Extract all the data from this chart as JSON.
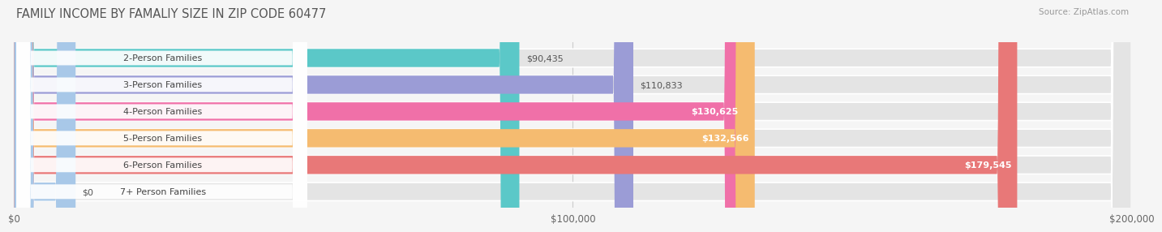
{
  "title": "FAMILY INCOME BY FAMALIY SIZE IN ZIP CODE 60477",
  "source": "Source: ZipAtlas.com",
  "categories": [
    "2-Person Families",
    "3-Person Families",
    "4-Person Families",
    "5-Person Families",
    "6-Person Families",
    "7+ Person Families"
  ],
  "values": [
    90435,
    110833,
    130625,
    132566,
    179545,
    0
  ],
  "labels": [
    "$90,435",
    "$110,833",
    "$130,625",
    "$132,566",
    "$179,545",
    "$0"
  ],
  "bar_colors": [
    "#5bc8c8",
    "#9b9cd6",
    "#f070a8",
    "#f5bb70",
    "#e87878",
    "#a8c8e8"
  ],
  "label_inside": [
    false,
    false,
    true,
    true,
    true,
    false
  ],
  "label_text_colors_inside": [
    "#555555",
    "#555555",
    "#ffffff",
    "#ffffff",
    "#ffffff",
    "#555555"
  ],
  "background_color": "#f5f5f5",
  "bar_bg_color": "#e0e0e0",
  "xmax": 200000,
  "xticks": [
    0,
    100000,
    200000
  ],
  "xticklabels": [
    "$0",
    "$100,000",
    "$200,000"
  ]
}
